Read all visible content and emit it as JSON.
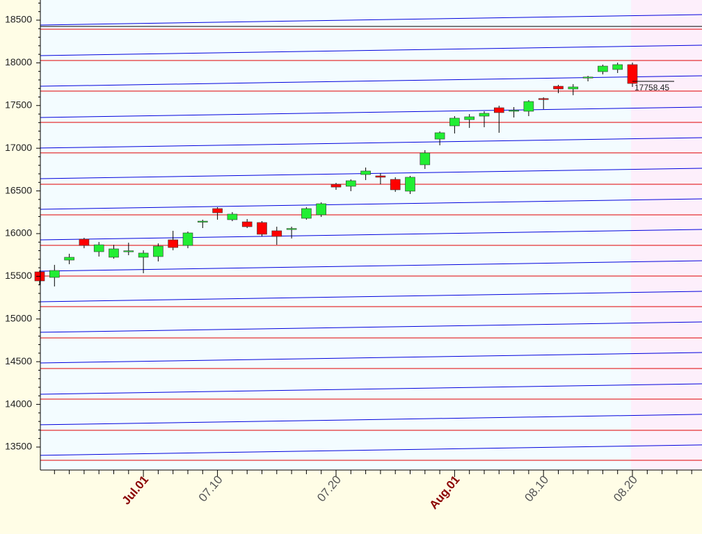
{
  "chart_data": {
    "type": "candlestick",
    "categories": [
      null,
      null,
      null,
      null,
      null,
      null,
      null,
      "Jul.01",
      null,
      null,
      null,
      null,
      "07.10",
      null,
      null,
      null,
      null,
      null,
      null,
      null,
      "07.20",
      null,
      null,
      null,
      null,
      null,
      null,
      null,
      "Aug.01",
      null,
      null,
      null,
      null,
      null,
      "08.10",
      null,
      null,
      null,
      null,
      null,
      "08.20"
    ],
    "open": [
      15552,
      15487,
      15690,
      15935,
      15788,
      15723,
      15792,
      15723,
      15731,
      15927,
      15861,
      16137,
      16293,
      16163,
      16138,
      16130,
      16033,
      16050,
      16179,
      16220,
      16578,
      16554,
      16692,
      16676,
      16635,
      16497,
      16806,
      17107,
      17262,
      17335,
      17376,
      17474,
      17437,
      17433,
      17582,
      17726,
      17694,
      17826,
      17897,
      17922,
      17979
    ],
    "high": [
      15568,
      15634,
      15764,
      15951,
      15902,
      15869,
      15894,
      15805,
      15886,
      16033,
      16024,
      16163,
      16309,
      16252,
      16171,
      16146,
      16081,
      16081,
      16309,
      16366,
      16594,
      16635,
      16774,
      16708,
      16660,
      16676,
      16977,
      17197,
      17376,
      17400,
      17433,
      17498,
      17482,
      17563,
      17596,
      17743,
      17751,
      17848,
      17979,
      18003,
      18003
    ],
    "low": [
      15397,
      15381,
      15642,
      15829,
      15731,
      15707,
      15747,
      15536,
      15674,
      15805,
      15829,
      16065,
      16163,
      16146,
      16065,
      15967,
      15869,
      15943,
      16163,
      16195,
      16513,
      16497,
      16627,
      16578,
      16489,
      16464,
      16757,
      17034,
      17173,
      17238,
      17246,
      17181,
      17360,
      17376,
      17458,
      17645,
      17621,
      17783,
      17865,
      17881,
      17718
    ],
    "close": [
      15446,
      15568,
      15723,
      15861,
      15869,
      15821,
      15799,
      15772,
      15853,
      15837,
      16008,
      16146,
      16244,
      16228,
      16081,
      15992,
      15967,
      16060,
      16293,
      16350,
      16545,
      16619,
      16733,
      16660,
      16513,
      16660,
      16945,
      17181,
      17352,
      17368,
      17409,
      17417,
      17445,
      17547,
      17575,
      17694,
      17718,
      17834,
      17962,
      17979,
      17758.45
    ],
    "up_color": "#22ee33",
    "down_color": "#ff0000",
    "ylim": [
      13231,
      18736
    ],
    "yticks": [
      13500,
      14000,
      14500,
      15000,
      15500,
      16000,
      16500,
      17000,
      17500,
      18000,
      18500
    ],
    "levels": [
      18394,
      18028,
      17669,
      17303,
      16945,
      16578,
      16220,
      15862,
      15503,
      15145,
      14778,
      14420,
      14062,
      13696,
      13345
    ],
    "level_color": "#e00000",
    "trend_lines": [
      [
        18443,
        18565
      ],
      [
        18085,
        18207
      ],
      [
        17726,
        17848
      ],
      [
        17360,
        17482
      ],
      [
        17002,
        17124
      ],
      [
        16643,
        16765
      ],
      [
        16285,
        16407
      ],
      [
        15927,
        16049
      ],
      [
        15560,
        15682
      ],
      [
        15202,
        15324
      ],
      [
        14844,
        14966
      ],
      [
        14485,
        14607
      ],
      [
        14119,
        14241
      ],
      [
        13761,
        13883
      ],
      [
        13403,
        13525
      ]
    ],
    "trend_color": "#0000dd",
    "reference_line": 18427,
    "reference_color": "#000000"
  }
}
